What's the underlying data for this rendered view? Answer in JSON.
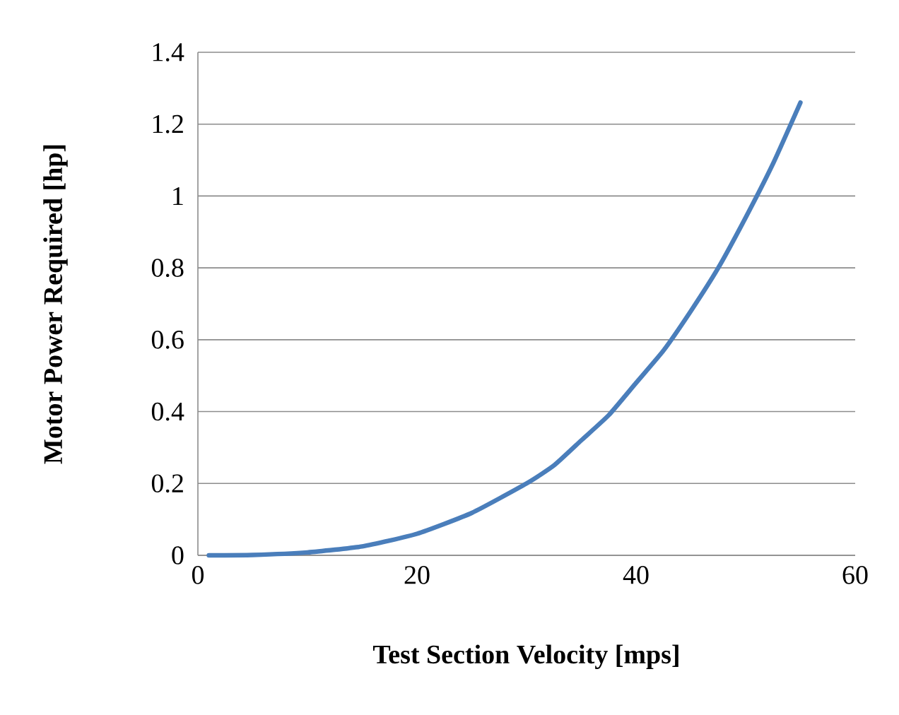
{
  "chart_data": {
    "type": "line",
    "xlabel": "Test Section Velocity [mps]",
    "ylabel": "Motor Power Required [hp]",
    "series": [
      {
        "color": "#4a7ebb",
        "x": [
          1,
          5,
          10,
          15,
          20,
          25,
          30,
          32.5,
          35,
          37.5,
          40,
          42.5,
          45,
          47.5,
          50,
          52.5,
          55
        ],
        "values": [
          0,
          0.001,
          0.008,
          0.025,
          0.06,
          0.118,
          0.2,
          0.25,
          0.32,
          0.39,
          0.48,
          0.57,
          0.68,
          0.8,
          0.94,
          1.09,
          1.26
        ]
      }
    ],
    "xlim": [
      0,
      60
    ],
    "ylim": [
      0,
      1.4
    ],
    "xticks": [
      0,
      20,
      40,
      60
    ],
    "yticks": [
      0,
      0.2,
      0.4,
      0.6,
      0.8,
      1,
      1.2,
      1.4
    ],
    "grid": "y",
    "marker": "none",
    "line_style": "solid"
  }
}
